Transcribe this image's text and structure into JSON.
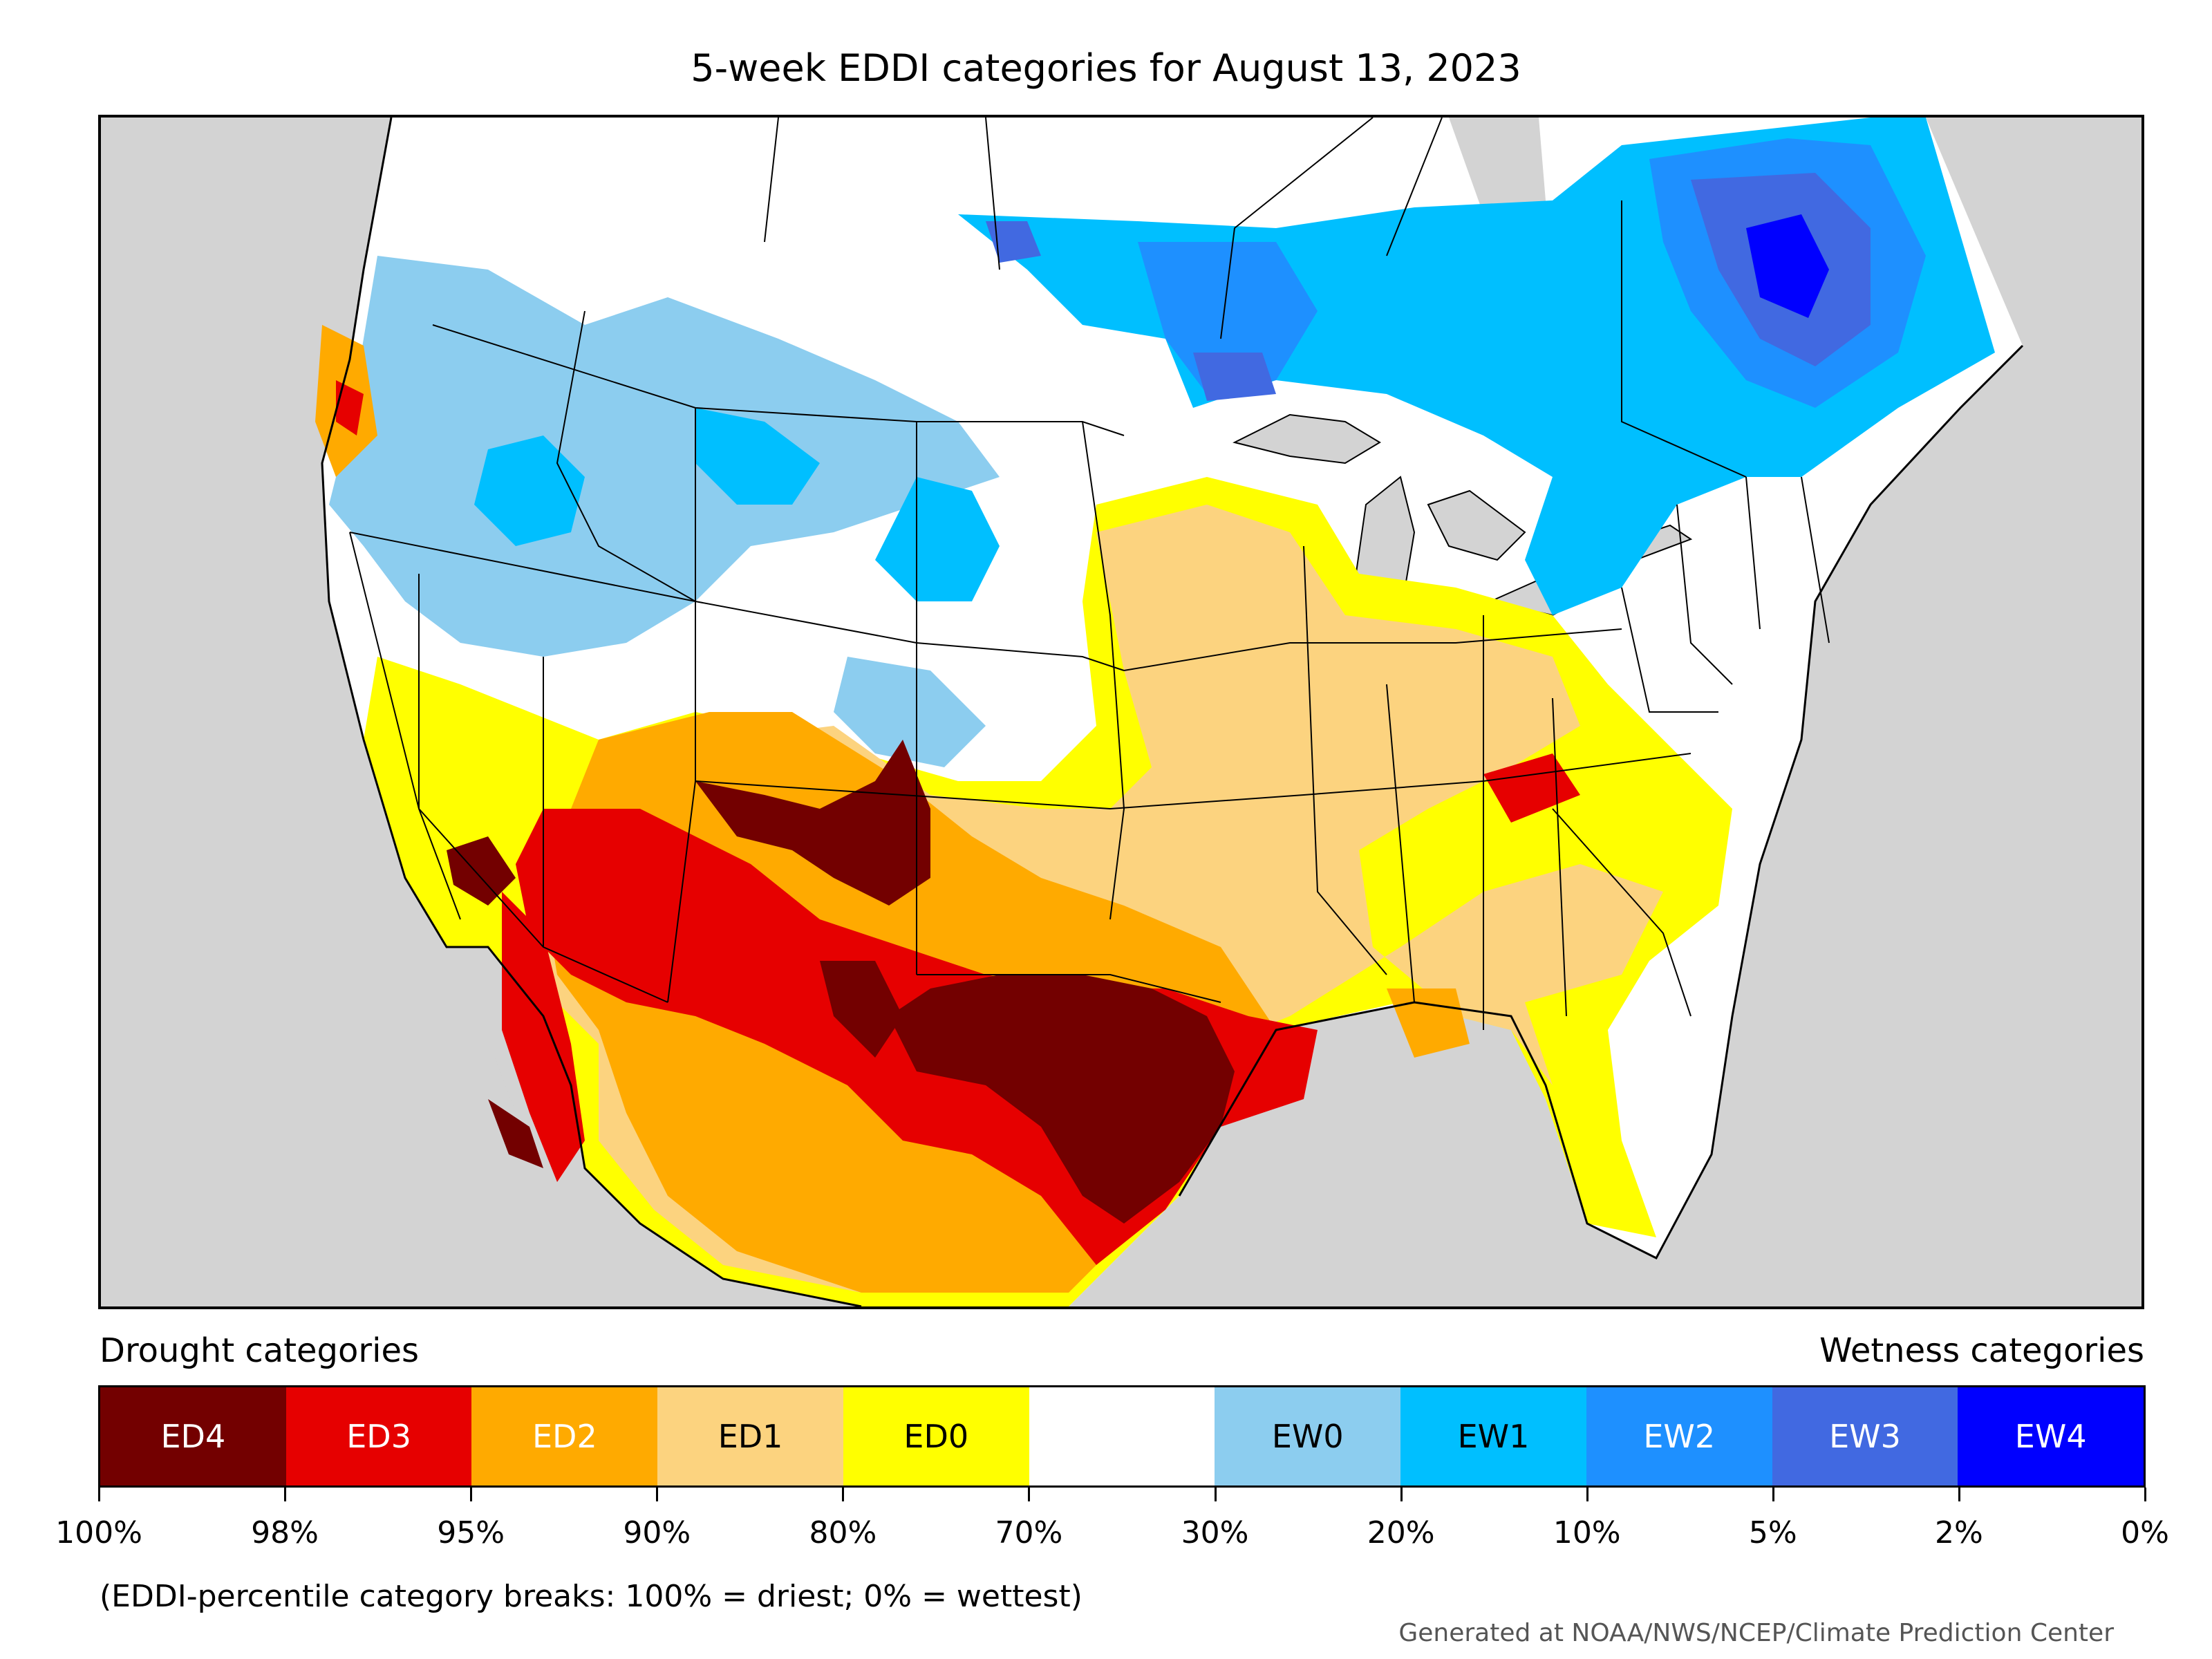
{
  "title": "5-week EDDI categories for August 13, 2023",
  "legend": {
    "left_title": "Drought categories",
    "right_title": "Wetness categories",
    "categories": [
      {
        "label": "ED4",
        "color": "#730000",
        "text_color": "#ffffff"
      },
      {
        "label": "ED3",
        "color": "#e60000",
        "text_color": "#ffffff"
      },
      {
        "label": "ED2",
        "color": "#ffaa00",
        "text_color": "#ffffff"
      },
      {
        "label": "ED1",
        "color": "#fcd37f",
        "text_color": "#000000"
      },
      {
        "label": "ED0",
        "color": "#ffff00",
        "text_color": "#000000"
      },
      {
        "label": "",
        "color": "#ffffff",
        "text_color": "#000000"
      },
      {
        "label": "EW0",
        "color": "#8ccdef",
        "text_color": "#000000"
      },
      {
        "label": "EW1",
        "color": "#00bfff",
        "text_color": "#000000"
      },
      {
        "label": "EW2",
        "color": "#1e90ff",
        "text_color": "#ffffff"
      },
      {
        "label": "EW3",
        "color": "#4169e1",
        "text_color": "#ffffff"
      },
      {
        "label": "EW4",
        "color": "#0000ff",
        "text_color": "#ffffff"
      }
    ],
    "ticks": [
      "100%",
      "98%",
      "95%",
      "90%",
      "80%",
      "70%",
      "30%",
      "20%",
      "10%",
      "5%",
      "2%",
      "0%"
    ]
  },
  "footnote": "(EDDI-percentile category breaks: 100% = driest; 0% = wettest)",
  "credit": "Generated at NOAA/NWS/NCEP/Climate Prediction Center",
  "colors": {
    "background_non_us": "#d3d3d3",
    "ed4": "#730000",
    "ed3": "#e60000",
    "ed2": "#ffaa00",
    "ed1": "#fcd37f",
    "ed0": "#ffff00",
    "ew0": "#8ccdef",
    "ew1": "#00bfff",
    "ew2": "#1e90ff",
    "ew3": "#4169e1",
    "ew4": "#0000ff"
  }
}
